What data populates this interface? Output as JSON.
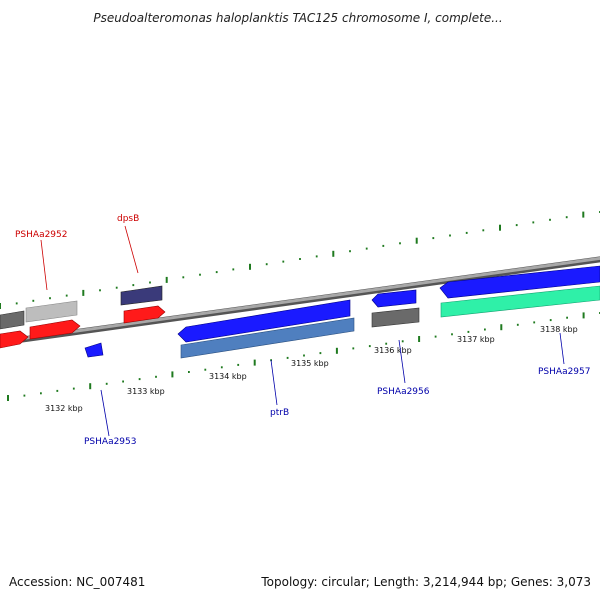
{
  "title": "Pseudoalteromonas haloplanktis TAC125 chromosome I, complete...",
  "footer": {
    "accession": "Accession: NC_007481",
    "summary": "Topology: circular; Length: 3,214,944 bp; Genes: 3,073"
  },
  "colors": {
    "backbone": "#888888",
    "tick": "#1f7a1f",
    "label_red": "#cc0000",
    "label_blue": "#0000aa",
    "gene_red": "#ff1a1a",
    "gene_blue": "#1a1aff",
    "gene_steel": "#4f7fbf",
    "gene_gray": "#6a6a6a",
    "gene_lightgray": "#bdbdbd",
    "gene_navy": "#3a3a7a",
    "gene_teal": "#2ff0a8"
  },
  "scale": {
    "ticks": [
      "3132 kbp",
      "3133 kbp",
      "3134 kbp",
      "3135 kbp",
      "3136 kbp",
      "3137 kbp",
      "3138 kbp"
    ]
  },
  "genes": [
    {
      "label": "dpsB"
    },
    {
      "label": "PSHAa2952"
    },
    {
      "label": "PSHAa2953"
    },
    {
      "label": "ptrB"
    },
    {
      "label": "PSHAa2956"
    },
    {
      "label": "PSHAa2957"
    }
  ]
}
